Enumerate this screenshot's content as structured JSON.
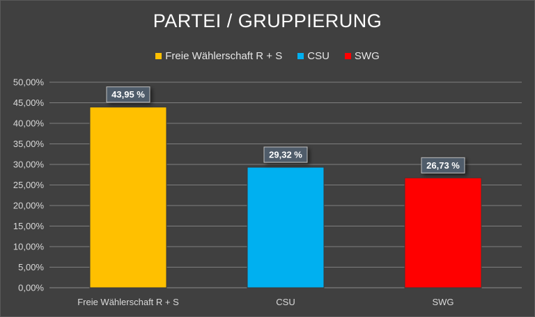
{
  "chart_data": {
    "type": "bar",
    "title": "PARTEI / GRUPPIERUNG",
    "xlabel": "",
    "ylabel": "",
    "categories": [
      "Freie Wählerschaft R + S",
      "CSU",
      "SWG"
    ],
    "values": [
      43.95,
      29.32,
      26.73
    ],
    "data_labels": [
      "43,95 %",
      "29,32 %",
      "26,73 %"
    ],
    "colors": [
      "#FFC000",
      "#00B0F0",
      "#FF0000"
    ],
    "ylim": [
      0,
      50
    ],
    "yticks": [
      0,
      5,
      10,
      15,
      20,
      25,
      30,
      35,
      40,
      45,
      50
    ],
    "ytick_labels": [
      "0,00%",
      "5,00%",
      "10,00%",
      "15,00%",
      "20,00%",
      "25,00%",
      "30,00%",
      "35,00%",
      "40,00%",
      "45,00%",
      "50,00%"
    ],
    "legend": {
      "position": "top",
      "entries": [
        "Freie Wählerschaft R + S",
        "CSU",
        "SWG"
      ]
    },
    "grid": true
  },
  "colors": {
    "background": "#404040",
    "gridline": "#7f7f7f",
    "text": "#d9d9d9"
  }
}
